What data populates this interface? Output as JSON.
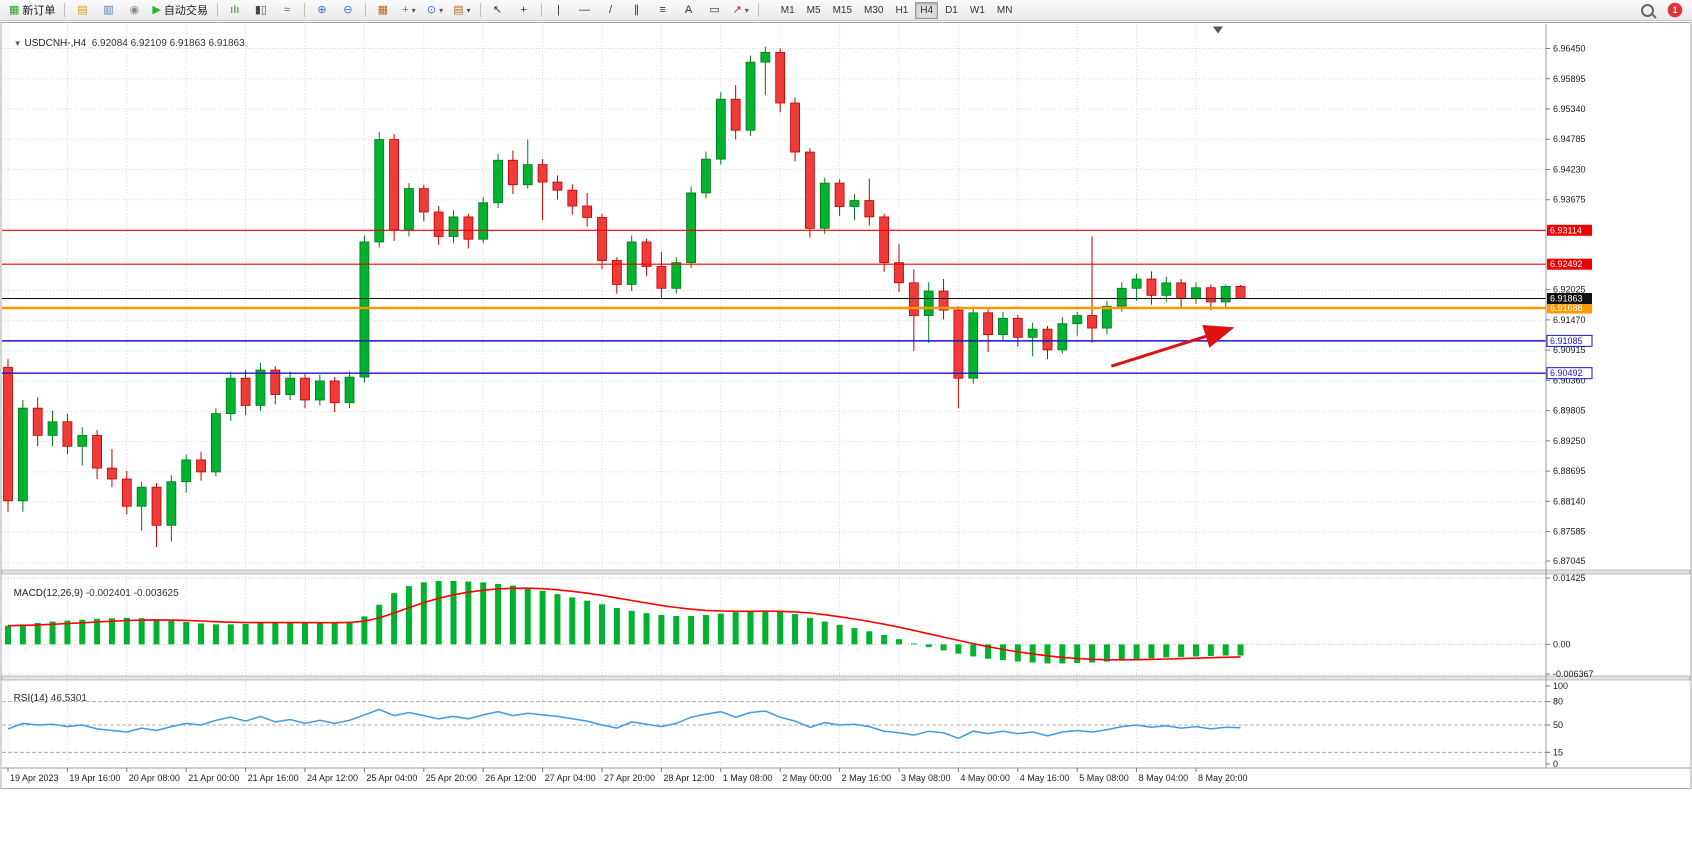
{
  "toolbar": {
    "notification_count": "1",
    "active_timeframe": "H4",
    "groups": [
      {
        "name": "trade",
        "items": [
          {
            "name": "new-order-button",
            "icon": "new-order-icon",
            "glyph": "▦",
            "color": "#2f9e2f",
            "label": "新订单"
          }
        ]
      },
      {
        "name": "windows",
        "items": [
          {
            "name": "market-watch-button",
            "icon": "market-watch-icon",
            "glyph": "▤",
            "color": "#d4a017"
          },
          {
            "name": "data-window-button",
            "icon": "data-window-icon",
            "glyph": "▥",
            "color": "#5b7db1"
          },
          {
            "name": "navigator-button",
            "icon": "navigator-icon",
            "glyph": "◉",
            "color": "#8a8a8a"
          },
          {
            "name": "autotrading-button",
            "icon": "autotrading-play-icon",
            "glyph": "▶",
            "color": "#28b428",
            "label": "自动交易"
          }
        ]
      },
      {
        "name": "chart-types",
        "items": [
          {
            "name": "bar-chart-button",
            "icon": "bar-chart-icon",
            "glyph": "ıIı",
            "color": "#2f7d2f"
          },
          {
            "name": "candlestick-chart-button",
            "icon": "candlestick-chart-icon",
            "glyph": "▮▯",
            "color": "#444444"
          },
          {
            "name": "line-chart-button",
            "icon": "line-chart-icon",
            "glyph": "≈",
            "color": "#2f7d2f"
          }
        ]
      },
      {
        "name": "zoom",
        "items": [
          {
            "name": "zoom-in-button",
            "icon": "zoom-in-icon",
            "glyph": "⊕",
            "color": "#3a6fd8"
          },
          {
            "name": "zoom-out-button",
            "icon": "zoom-out-icon",
            "glyph": "⊖",
            "color": "#3a6fd8"
          }
        ]
      },
      {
        "name": "layout",
        "items": [
          {
            "name": "tile-windows-button",
            "icon": "tile-windows-icon",
            "glyph": "▦",
            "color": "#b06820"
          },
          {
            "name": "indicators-button",
            "icon": "indicators-plus-icon",
            "glyph": "+",
            "color": "#1e9e1e",
            "dropdown": true
          },
          {
            "name": "periods-button",
            "icon": "clock-icon",
            "glyph": "⊙",
            "color": "#3a6fd8",
            "dropdown": true
          },
          {
            "name": "templates-button",
            "icon": "template-chart-icon",
            "glyph": "▤",
            "color": "#b06820",
            "dropdown": true
          }
        ]
      },
      {
        "name": "cursor",
        "items": [
          {
            "name": "cursor-button",
            "icon": "cursor-arrow-icon",
            "glyph": "↖",
            "color": "#333333"
          },
          {
            "name": "crosshair-button",
            "icon": "crosshair-icon",
            "glyph": "+",
            "color": "#333333"
          }
        ]
      },
      {
        "name": "objects",
        "items": [
          {
            "name": "vertical-line-button",
            "icon": "vertical-line-icon",
            "glyph": "|",
            "color": "#333333"
          },
          {
            "name": "horizontal-line-button",
            "icon": "horizontal-line-icon",
            "glyph": "—",
            "color": "#333333"
          },
          {
            "name": "trendline-button",
            "icon": "trendline-icon",
            "glyph": "/",
            "color": "#333333"
          },
          {
            "name": "channel-button",
            "icon": "channel-icon",
            "glyph": "∥",
            "color": "#333333"
          },
          {
            "name": "fibonacci-button",
            "icon": "fibonacci-icon",
            "glyph": "≡",
            "color": "#333333"
          },
          {
            "name": "text-button",
            "icon": "text-icon",
            "glyph": "A",
            "color": "#333333"
          },
          {
            "name": "text-label-button",
            "icon": "label-icon",
            "glyph": "▭",
            "color": "#333333"
          },
          {
            "name": "arrows-button",
            "icon": "arrow-object-icon",
            "glyph": "↗",
            "color": "#c03030",
            "dropdown": true
          }
        ]
      },
      {
        "name": "timeframes",
        "items": [
          {
            "name": "timeframe-m1-button",
            "label": "M1"
          },
          {
            "name": "timeframe-m5-button",
            "label": "M5"
          },
          {
            "name": "timeframe-m15-button",
            "label": "M15"
          },
          {
            "name": "timeframe-m30-button",
            "label": "M30"
          },
          {
            "name": "timeframe-h1-button",
            "label": "H1"
          },
          {
            "name": "timeframe-h4-button",
            "label": "H4",
            "active": true
          },
          {
            "name": "timeframe-d1-button",
            "label": "D1"
          },
          {
            "name": "timeframe-w1-button",
            "label": "W1"
          },
          {
            "name": "timeframe-mn-button",
            "label": "MN"
          }
        ]
      }
    ]
  },
  "chart": {
    "collapse_icon": "▼",
    "symbol_period": "USDCNH-,H4",
    "ohlc": "6.92084 6.92109 6.91863 6.91863"
  },
  "chart_data": {
    "type": "candlestick",
    "title": "USDCNH-,H4",
    "timeframe": "H4",
    "ohlc_display": {
      "open": "6.92084",
      "high": "6.92109",
      "low": "6.91863",
      "close": "6.91863"
    },
    "x_labels": [
      "19 Apr 2023",
      "19 Apr 16:00",
      "20 Apr 08:00",
      "21 Apr 00:00",
      "21 Apr 16:00",
      "24 Apr 12:00",
      "25 Apr 04:00",
      "25 Apr 20:00",
      "26 Apr 12:00",
      "27 Apr 04:00",
      "27 Apr 20:00",
      "28 Apr 12:00",
      "1 May 08:00",
      "2 May 00:00",
      "2 May 16:00",
      "3 May 08:00",
      "4 May 00:00",
      "4 May 16:00",
      "5 May 08:00",
      "8 May 04:00",
      "8 May 20:00"
    ],
    "candles_per_label": 4,
    "price_axis": {
      "labels": [
        "6.96450",
        "6.95895",
        "6.95340",
        "6.94785",
        "6.94230",
        "6.93675",
        "6.92025",
        "6.91470",
        "6.90915",
        "6.90360",
        "6.89805",
        "6.89250",
        "6.88695",
        "6.88140",
        "6.87585",
        "6.87045"
      ],
      "grid_start": 6.9645,
      "grid_step": 0.00555,
      "grid_count": 18,
      "min": 6.8688,
      "max": 6.969
    },
    "candles": [
      [
        6.906,
        6.9075,
        6.8795,
        6.8815
      ],
      [
        6.8815,
        6.9,
        6.8795,
        6.8985
      ],
      [
        6.8985,
        6.9005,
        6.8915,
        6.8935
      ],
      [
        6.8935,
        6.898,
        6.8915,
        6.896
      ],
      [
        6.896,
        6.8975,
        6.89,
        6.8915
      ],
      [
        6.8915,
        6.895,
        6.888,
        6.8935
      ],
      [
        6.8935,
        6.8945,
        6.8855,
        6.8875
      ],
      [
        6.8875,
        6.891,
        6.884,
        6.8855
      ],
      [
        6.8855,
        6.887,
        6.879,
        6.8805
      ],
      [
        6.8805,
        6.885,
        6.876,
        6.884
      ],
      [
        6.884,
        6.8848,
        6.873,
        6.877
      ],
      [
        6.877,
        6.8862,
        6.874,
        6.885
      ],
      [
        6.885,
        6.89,
        6.883,
        6.889
      ],
      [
        6.889,
        6.8905,
        6.8852,
        6.8868
      ],
      [
        6.8868,
        6.8985,
        6.886,
        6.8975
      ],
      [
        6.8975,
        6.9052,
        6.8962,
        6.904
      ],
      [
        6.904,
        6.9055,
        6.8972,
        6.899
      ],
      [
        6.899,
        6.9068,
        6.898,
        6.9055
      ],
      [
        6.9055,
        6.9062,
        6.8992,
        6.901
      ],
      [
        6.901,
        6.9052,
        6.9,
        6.904
      ],
      [
        6.904,
        6.9048,
        6.8985,
        6.9
      ],
      [
        6.9,
        6.9046,
        6.899,
        6.9035
      ],
      [
        6.9035,
        6.9042,
        6.8978,
        6.8995
      ],
      [
        6.8995,
        6.9052,
        6.8985,
        6.9042
      ],
      [
        6.9042,
        6.9302,
        6.9032,
        6.929
      ],
      [
        6.929,
        6.9492,
        6.928,
        6.9478
      ],
      [
        6.9478,
        6.9488,
        6.9292,
        6.9312
      ],
      [
        6.9312,
        6.9398,
        6.93,
        6.9388
      ],
      [
        6.9388,
        6.9395,
        6.9328,
        6.9345
      ],
      [
        6.9345,
        6.9356,
        6.9285,
        6.93
      ],
      [
        6.93,
        6.9348,
        6.9288,
        6.9336
      ],
      [
        6.9336,
        6.9342,
        6.9278,
        6.9295
      ],
      [
        6.9295,
        6.9372,
        6.9288,
        6.9362
      ],
      [
        6.9362,
        6.9452,
        6.9352,
        6.944
      ],
      [
        6.944,
        6.9458,
        6.9378,
        6.9395
      ],
      [
        6.9395,
        6.9478,
        6.9388,
        6.9432
      ],
      [
        6.9432,
        6.9442,
        6.933,
        6.94
      ],
      [
        6.94,
        6.9412,
        6.9368,
        6.9385
      ],
      [
        6.9385,
        6.9396,
        6.934,
        6.9356
      ],
      [
        6.9356,
        6.938,
        6.9318,
        6.9335
      ],
      [
        6.9335,
        6.9342,
        6.924,
        6.9256
      ],
      [
        6.9256,
        6.9262,
        6.9195,
        6.9212
      ],
      [
        6.9212,
        6.9302,
        6.92,
        6.929
      ],
      [
        6.929,
        6.9296,
        6.9228,
        6.9245
      ],
      [
        6.9245,
        6.9272,
        6.9185,
        6.9205
      ],
      [
        6.9205,
        6.9262,
        6.9195,
        6.9252
      ],
      [
        6.9252,
        6.9392,
        6.9242,
        6.938
      ],
      [
        6.938,
        6.9456,
        6.937,
        6.9442
      ],
      [
        6.9442,
        6.9565,
        6.9432,
        6.9552
      ],
      [
        6.9552,
        6.9578,
        6.9478,
        6.9495
      ],
      [
        6.9495,
        6.9632,
        6.9485,
        6.962
      ],
      [
        6.962,
        6.9648,
        6.956,
        6.9638
      ],
      [
        6.9638,
        6.9645,
        6.9528,
        6.9545
      ],
      [
        6.9545,
        6.9555,
        6.9438,
        6.9455
      ],
      [
        6.9455,
        6.9462,
        6.9298,
        6.9315
      ],
      [
        6.9315,
        6.9408,
        6.9305,
        6.9398
      ],
      [
        6.9398,
        6.9405,
        6.9338,
        6.9355
      ],
      [
        6.9355,
        6.9378,
        6.933,
        6.9366
      ],
      [
        6.9366,
        6.9406,
        6.932,
        6.9336
      ],
      [
        6.9336,
        6.9342,
        6.9235,
        6.9252
      ],
      [
        6.9252,
        6.9286,
        6.9198,
        6.9215
      ],
      [
        6.9215,
        6.924,
        6.909,
        6.9155
      ],
      [
        6.9155,
        6.9216,
        6.9105,
        6.92
      ],
      [
        6.92,
        6.9222,
        6.9148,
        6.9165
      ],
      [
        6.9165,
        6.9172,
        6.8985,
        6.904
      ],
      [
        6.904,
        6.9172,
        6.903,
        6.916
      ],
      [
        6.916,
        6.9166,
        6.9088,
        6.912
      ],
      [
        6.912,
        6.9162,
        6.9108,
        6.915
      ],
      [
        6.915,
        6.9156,
        6.9098,
        6.9115
      ],
      [
        6.9115,
        6.9142,
        6.908,
        6.913
      ],
      [
        6.913,
        6.9136,
        6.9075,
        6.9092
      ],
      [
        6.9092,
        6.9152,
        6.9085,
        6.914
      ],
      [
        6.914,
        6.9162,
        6.9118,
        6.9155
      ],
      [
        6.9155,
        6.93,
        6.9105,
        6.9132
      ],
      [
        6.9132,
        6.9182,
        6.912,
        6.9172
      ],
      [
        6.9172,
        6.9216,
        6.9162,
        6.9205
      ],
      [
        6.9205,
        6.9232,
        6.9182,
        6.9222
      ],
      [
        6.9222,
        6.9236,
        6.9175,
        6.9192
      ],
      [
        6.9192,
        6.9226,
        6.918,
        6.9215
      ],
      [
        6.9215,
        6.9222,
        6.917,
        6.9186
      ],
      [
        6.9186,
        6.9216,
        6.9176,
        6.9206
      ],
      [
        6.9206,
        6.9212,
        6.9165,
        6.918
      ],
      [
        6.918,
        6.9212,
        6.917,
        6.92084
      ],
      [
        6.92084,
        6.92109,
        6.91863,
        6.91863
      ]
    ],
    "levels": [
      {
        "price": 6.93114,
        "label": "6.93114",
        "color": "#f00000",
        "width": 1.2,
        "outlined": false
      },
      {
        "price": 6.92492,
        "label": "6.92492",
        "color": "#f00000",
        "width": 1.2,
        "outlined": false
      },
      {
        "price": 6.91688,
        "label": "6.91688",
        "color": "#ff9800",
        "width": 2.4,
        "outlined": false
      },
      {
        "price": 6.91085,
        "label": "6.91085",
        "color": "#1515d0",
        "width": 1.4,
        "outlined": true
      },
      {
        "price": 6.90492,
        "label": "6.90492",
        "color": "#1515d0",
        "width": 1.4,
        "outlined": true
      }
    ],
    "current_price": {
      "value": 6.91863,
      "label": "6.91863",
      "color": "#111111"
    },
    "arrow": {
      "from_index": 74.3,
      "from_price": 6.9062,
      "to_index": 82.2,
      "to_price": 6.913,
      "color": "#e01010"
    },
    "macd": {
      "name": "MACD(12,26,9)",
      "display_values": "-0.002401 -0.003625",
      "axis_labels": [
        "0.01425",
        "0.00",
        "-0.006367"
      ],
      "max": 0.01425,
      "min": -0.006367,
      "signal_period": 9,
      "histogram_color": "#00b22d",
      "signal_color": "#ff0000",
      "values": [
        0.004,
        0.0043,
        0.0046,
        0.0049,
        0.0051,
        0.0053,
        0.0055,
        0.0056,
        0.0057,
        0.0056,
        0.0054,
        0.0051,
        0.0048,
        0.0045,
        0.0043,
        0.0043,
        0.0044,
        0.0046,
        0.0047,
        0.0047,
        0.0046,
        0.0046,
        0.0047,
        0.0049,
        0.006,
        0.0085,
        0.011,
        0.0125,
        0.0133,
        0.0136,
        0.0136,
        0.0135,
        0.0133,
        0.013,
        0.0126,
        0.0121,
        0.0115,
        0.0108,
        0.0101,
        0.0094,
        0.0086,
        0.0078,
        0.0072,
        0.0067,
        0.0063,
        0.0061,
        0.0061,
        0.0063,
        0.0066,
        0.0069,
        0.0071,
        0.0072,
        0.007,
        0.0065,
        0.0057,
        0.0049,
        0.0042,
        0.0035,
        0.0028,
        0.002,
        0.0011,
        0.0002,
        -0.0006,
        -0.0013,
        -0.002,
        -0.0026,
        -0.0031,
        -0.0034,
        -0.0037,
        -0.0039,
        -0.0041,
        -0.0041,
        -0.004,
        -0.0039,
        -0.0037,
        -0.0034,
        -0.0032,
        -0.003,
        -0.0028,
        -0.0027,
        -0.0026,
        -0.0025,
        -0.0024,
        -0.0024
      ]
    },
    "rsi": {
      "name": "RSI(14)",
      "display_value": "46.5301",
      "axis_labels": [
        "100",
        "80",
        "50",
        "15",
        "0"
      ],
      "levels": [
        80,
        50,
        15
      ],
      "range": [
        0,
        100
      ],
      "line_color": "#3d9ae8",
      "values": [
        45,
        52,
        50,
        51,
        48,
        50,
        45,
        43,
        41,
        46,
        43,
        48,
        52,
        50,
        56,
        60,
        55,
        61,
        54,
        57,
        52,
        56,
        52,
        56,
        63,
        70,
        62,
        66,
        62,
        58,
        61,
        58,
        63,
        67,
        62,
        65,
        63,
        61,
        58,
        55,
        50,
        46,
        54,
        51,
        48,
        52,
        60,
        64,
        67,
        60,
        66,
        68,
        60,
        55,
        47,
        53,
        50,
        51,
        48,
        42,
        40,
        37,
        42,
        40,
        33,
        42,
        39,
        42,
        39,
        41,
        36,
        41,
        43,
        41,
        44,
        48,
        50,
        47,
        49,
        46,
        48,
        45,
        47,
        46.53
      ]
    },
    "colors": {
      "candle_up_fill": "#00b22d",
      "candle_up_stroke": "#007a1e",
      "candle_down_fill": "#f03b3b",
      "candle_down_stroke": "#c00000",
      "grid": "#d8d8d8"
    }
  }
}
